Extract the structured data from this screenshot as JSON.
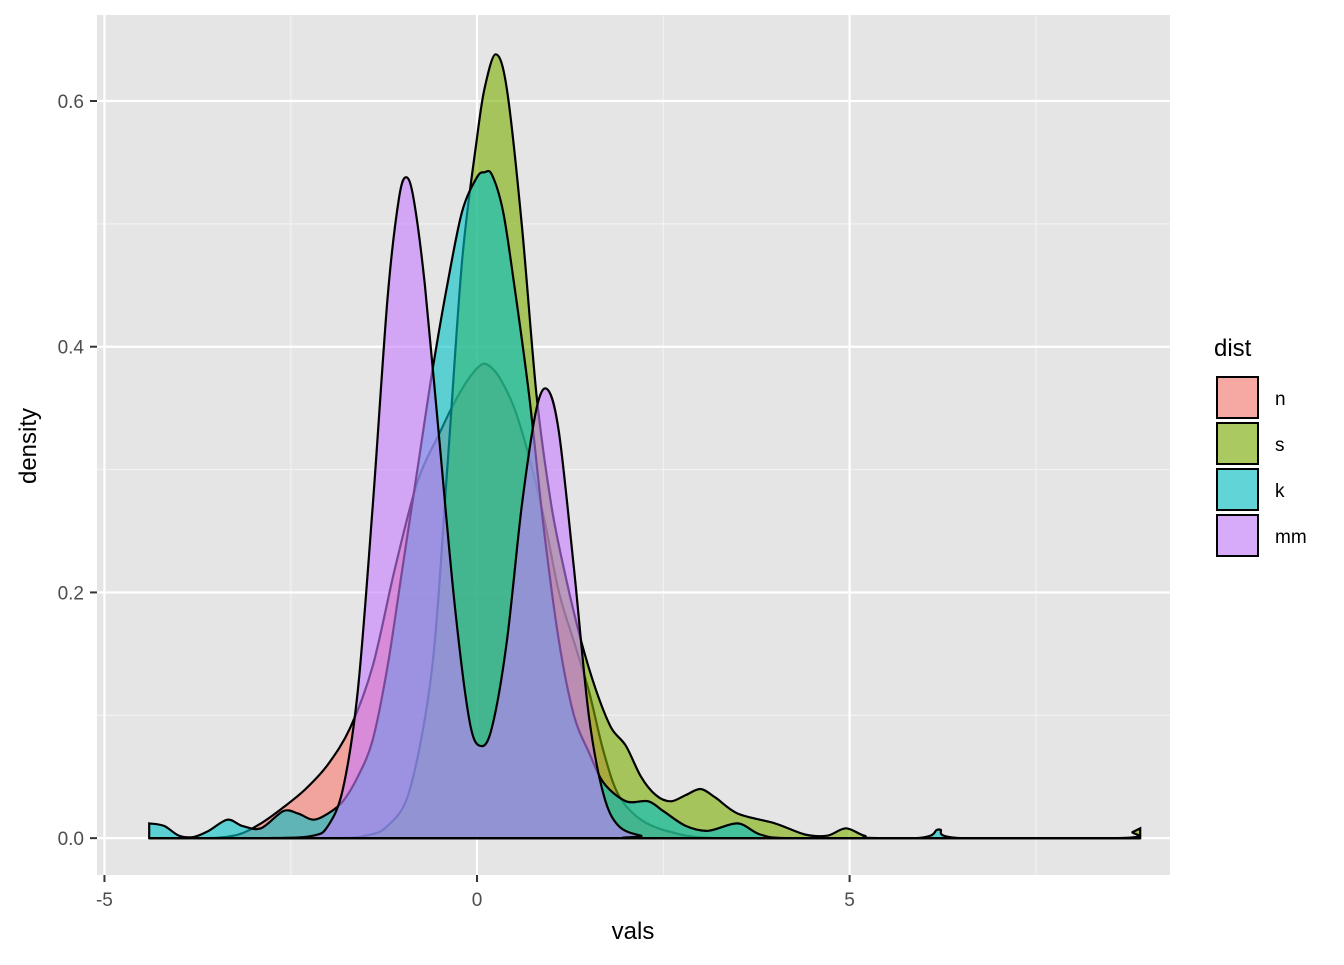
{
  "chart_data": {
    "type": "area",
    "subtype": "density",
    "title": "",
    "xlabel": "vals",
    "ylabel": "density",
    "xlim": [
      -5.1,
      9.3
    ],
    "ylim": [
      -0.03,
      0.67
    ],
    "x_ticks": [
      -5,
      0,
      5
    ],
    "x_tick_labels": [
      "-5",
      "0",
      "5"
    ],
    "y_ticks": [
      0.0,
      0.2,
      0.4,
      0.6
    ],
    "y_tick_labels": [
      "0.0",
      "0.2",
      "0.4",
      "0.6"
    ],
    "grid": true,
    "legend": {
      "title": "dist",
      "position": "right"
    },
    "series": [
      {
        "name": "n",
        "color": "#F8766D",
        "points": [
          [
            -4.4,
            0.0
          ],
          [
            -3.6,
            0.0
          ],
          [
            -3.2,
            0.003
          ],
          [
            -2.9,
            0.012
          ],
          [
            -2.6,
            0.025
          ],
          [
            -2.3,
            0.04
          ],
          [
            -2.0,
            0.06
          ],
          [
            -1.7,
            0.09
          ],
          [
            -1.4,
            0.14
          ],
          [
            -1.1,
            0.22
          ],
          [
            -0.8,
            0.29
          ],
          [
            -0.5,
            0.33
          ],
          [
            -0.3,
            0.355
          ],
          [
            -0.1,
            0.375
          ],
          [
            0.05,
            0.385
          ],
          [
            0.15,
            0.385
          ],
          [
            0.3,
            0.375
          ],
          [
            0.5,
            0.35
          ],
          [
            0.7,
            0.31
          ],
          [
            0.9,
            0.26
          ],
          [
            1.1,
            0.2
          ],
          [
            1.3,
            0.16
          ],
          [
            1.5,
            0.12
          ],
          [
            1.7,
            0.07
          ],
          [
            1.9,
            0.035
          ],
          [
            2.2,
            0.015
          ],
          [
            2.6,
            0.005
          ],
          [
            3.2,
            0.0
          ],
          [
            5.0,
            0.0
          ],
          [
            8.9,
            0.0
          ]
        ]
      },
      {
        "name": "s",
        "color": "#7CAE00",
        "points": [
          [
            -4.4,
            0.0
          ],
          [
            -2.0,
            0.0
          ],
          [
            -1.5,
            0.002
          ],
          [
            -1.2,
            0.01
          ],
          [
            -0.9,
            0.04
          ],
          [
            -0.6,
            0.14
          ],
          [
            -0.4,
            0.3
          ],
          [
            -0.2,
            0.47
          ],
          [
            0.0,
            0.57
          ],
          [
            0.1,
            0.61
          ],
          [
            0.25,
            0.638
          ],
          [
            0.4,
            0.61
          ],
          [
            0.6,
            0.5
          ],
          [
            0.8,
            0.36
          ],
          [
            1.0,
            0.27
          ],
          [
            1.2,
            0.21
          ],
          [
            1.4,
            0.16
          ],
          [
            1.6,
            0.12
          ],
          [
            1.8,
            0.09
          ],
          [
            2.0,
            0.075
          ],
          [
            2.2,
            0.05
          ],
          [
            2.4,
            0.035
          ],
          [
            2.6,
            0.03
          ],
          [
            2.8,
            0.035
          ],
          [
            3.0,
            0.04
          ],
          [
            3.2,
            0.033
          ],
          [
            3.5,
            0.02
          ],
          [
            4.0,
            0.012
          ],
          [
            4.4,
            0.003
          ],
          [
            4.7,
            0.002
          ],
          [
            4.95,
            0.008
          ],
          [
            5.2,
            0.002
          ],
          [
            5.5,
            0.0
          ],
          [
            8.6,
            0.0
          ],
          [
            8.8,
            0.005
          ],
          [
            8.9,
            0.008
          ]
        ]
      },
      {
        "name": "k",
        "color": "#00BFC4",
        "points": [
          [
            -4.4,
            0.012
          ],
          [
            -4.2,
            0.01
          ],
          [
            -4.0,
            0.002
          ],
          [
            -3.8,
            0.001
          ],
          [
            -3.6,
            0.006
          ],
          [
            -3.35,
            0.015
          ],
          [
            -3.15,
            0.01
          ],
          [
            -2.9,
            0.008
          ],
          [
            -2.6,
            0.022
          ],
          [
            -2.4,
            0.02
          ],
          [
            -2.2,
            0.015
          ],
          [
            -2.0,
            0.02
          ],
          [
            -1.8,
            0.03
          ],
          [
            -1.6,
            0.05
          ],
          [
            -1.4,
            0.08
          ],
          [
            -1.2,
            0.14
          ],
          [
            -1.0,
            0.22
          ],
          [
            -0.8,
            0.3
          ],
          [
            -0.6,
            0.38
          ],
          [
            -0.4,
            0.45
          ],
          [
            -0.2,
            0.51
          ],
          [
            0.0,
            0.538
          ],
          [
            0.1,
            0.542
          ],
          [
            0.2,
            0.54
          ],
          [
            0.35,
            0.51
          ],
          [
            0.5,
            0.45
          ],
          [
            0.7,
            0.36
          ],
          [
            0.9,
            0.25
          ],
          [
            1.1,
            0.16
          ],
          [
            1.3,
            0.1
          ],
          [
            1.5,
            0.07
          ],
          [
            1.7,
            0.045
          ],
          [
            2.0,
            0.03
          ],
          [
            2.3,
            0.03
          ],
          [
            2.5,
            0.022
          ],
          [
            2.8,
            0.01
          ],
          [
            3.1,
            0.006
          ],
          [
            3.5,
            0.012
          ],
          [
            3.8,
            0.003
          ],
          [
            4.2,
            0.0
          ],
          [
            5.9,
            0.0
          ],
          [
            6.2,
            0.007
          ],
          [
            6.5,
            0.0
          ],
          [
            8.9,
            0.0
          ]
        ]
      },
      {
        "name": "mm",
        "color": "#C77CFF",
        "points": [
          [
            -4.4,
            0.0
          ],
          [
            -2.8,
            0.0
          ],
          [
            -2.2,
            0.002
          ],
          [
            -2.0,
            0.01
          ],
          [
            -1.8,
            0.04
          ],
          [
            -1.6,
            0.12
          ],
          [
            -1.4,
            0.27
          ],
          [
            -1.2,
            0.44
          ],
          [
            -1.05,
            0.52
          ],
          [
            -0.95,
            0.538
          ],
          [
            -0.85,
            0.52
          ],
          [
            -0.7,
            0.45
          ],
          [
            -0.5,
            0.32
          ],
          [
            -0.3,
            0.19
          ],
          [
            -0.1,
            0.095
          ],
          [
            0.05,
            0.075
          ],
          [
            0.2,
            0.09
          ],
          [
            0.4,
            0.16
          ],
          [
            0.6,
            0.27
          ],
          [
            0.8,
            0.35
          ],
          [
            0.95,
            0.365
          ],
          [
            1.1,
            0.33
          ],
          [
            1.3,
            0.22
          ],
          [
            1.5,
            0.1
          ],
          [
            1.7,
            0.035
          ],
          [
            1.9,
            0.01
          ],
          [
            2.2,
            0.002
          ],
          [
            2.5,
            0.0
          ],
          [
            8.9,
            0.0
          ]
        ]
      }
    ]
  }
}
